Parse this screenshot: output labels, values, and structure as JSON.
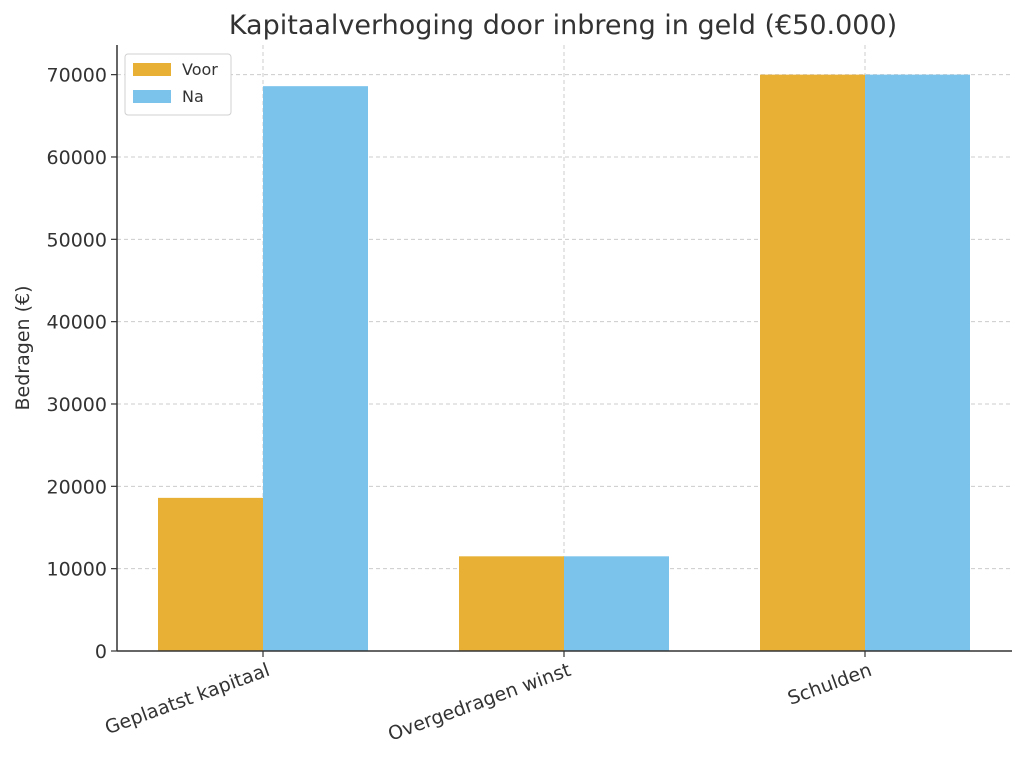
{
  "chart_data": {
    "type": "bar",
    "title": "Kapitaalverhoging door inbreng in geld (€50.000)",
    "xlabel": "",
    "ylabel": "Bedragen (€)",
    "categories": [
      "Geplaatst kapitaal",
      "Overgedragen winst",
      "Schulden"
    ],
    "series": [
      {
        "name": "Voor",
        "values": [
          18600,
          11500,
          70000
        ]
      },
      {
        "name": "Na",
        "values": [
          68600,
          11500,
          70000
        ]
      }
    ],
    "yticks": [
      0,
      10000,
      20000,
      30000,
      40000,
      50000,
      60000,
      70000
    ],
    "ylim": [
      0,
      73600
    ],
    "grid": true,
    "legend_position": "top-left",
    "colors": [
      "#e8b136",
      "#7bc3eb"
    ]
  }
}
